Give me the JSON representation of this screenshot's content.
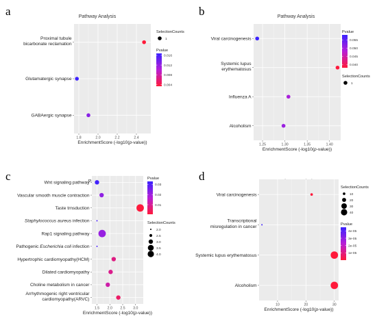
{
  "chart_data": [
    {
      "type": "scatter",
      "panel_label": "a",
      "title": "Pathway Analysis",
      "xlabel": "EnrichmentScore (-log10(",
      "xlabel_italic": "p",
      "xlabel_suffix": "-value))",
      "xlim": [
        1.75,
        2.55
      ],
      "xticks": [
        1.8,
        2.0,
        2.2,
        2.4
      ],
      "xtick_labels": [
        "1.8",
        "2.0",
        "2.2",
        "2.4"
      ],
      "categories": [
        {
          "parts": [
            {
              "t": "Proximal tubule",
              "i": false
            }
          ],
          "line2": [
            {
              "t": "bicarbonate reclamation",
              "i": false
            }
          ]
        },
        {
          "parts": [
            {
              "t": "Glutamatergic synapse",
              "i": false
            }
          ]
        },
        {
          "parts": [
            {
              "t": "GABAergic synapse",
              "i": false
            }
          ]
        }
      ],
      "points": [
        {
          "x": 2.48,
          "cat": 0,
          "pvalue": 0.0033,
          "count": 1
        },
        {
          "x": 1.78,
          "cat": 1,
          "pvalue": 0.0166,
          "count": 1
        },
        {
          "x": 1.9,
          "cat": 2,
          "pvalue": 0.0126,
          "count": 1
        }
      ],
      "size_legend": {
        "title": "SelectionCounts",
        "labels": [
          "1"
        ],
        "values": [
          1
        ]
      },
      "size_range": [
        1,
        1
      ],
      "color_legend": {
        "title": "Pvalue",
        "range": [
          0.0033,
          0.0168
        ],
        "ticks": [
          0.004,
          0.008,
          0.012,
          0.016
        ],
        "tick_labels": [
          "0.004",
          "0.008",
          "0.012",
          "0.016"
        ]
      },
      "legend_order": [
        "size",
        "color"
      ]
    },
    {
      "type": "scatter",
      "panel_label": "b",
      "title": "Pathway Analysis",
      "xlabel": "EnrichmentScore (-log10(",
      "xlabel_italic": "p",
      "xlabel_suffix": "-value))",
      "xlim": [
        1.23,
        1.425
      ],
      "xticks": [
        1.25,
        1.3,
        1.35,
        1.4
      ],
      "xtick_labels": [
        "1.25",
        "1.30",
        "1.35",
        "1.40"
      ],
      "categories": [
        {
          "parts": [
            {
              "t": "Viral carcinogenesis",
              "i": false
            }
          ]
        },
        {
          "parts": [
            {
              "t": "Systemic lupus",
              "i": false
            }
          ],
          "line2": [
            {
              "t": "erythematosus",
              "i": false
            }
          ]
        },
        {
          "parts": [
            {
              "t": "Influenza A",
              "i": false
            }
          ]
        },
        {
          "parts": [
            {
              "t": "Alcoholism",
              "i": false
            }
          ]
        }
      ],
      "points": [
        {
          "x": 1.238,
          "cat": 0,
          "pvalue": 0.0579,
          "count": 1
        },
        {
          "x": 1.418,
          "cat": 1,
          "pvalue": 0.0382,
          "count": 1
        },
        {
          "x": 1.308,
          "cat": 2,
          "pvalue": 0.0492,
          "count": 1
        },
        {
          "x": 1.297,
          "cat": 3,
          "pvalue": 0.0504,
          "count": 1
        }
      ],
      "size_legend": {
        "title": "SelectionCounts",
        "labels": [
          "1"
        ],
        "values": [
          1
        ]
      },
      "size_range": [
        1,
        1
      ],
      "color_legend": {
        "title": "Pvalue",
        "range": [
          0.038,
          0.058
        ],
        "ticks": [
          0.04,
          0.045,
          0.05,
          0.055
        ],
        "tick_labels": [
          "0.040",
          "0.045",
          "0.050",
          "0.055"
        ]
      },
      "legend_order": [
        "color",
        "size"
      ]
    },
    {
      "type": "scatter",
      "panel_label": "c",
      "title": "Pathway Analysis",
      "xlabel": "EnrichmentScore (-log10(",
      "xlabel_italic": "p",
      "xlabel_suffix": "-value))",
      "xlim": [
        1.3,
        3.3
      ],
      "xticks": [
        1.5,
        2.0,
        2.5,
        3.0
      ],
      "xtick_labels": [
        "1.5",
        "2.0",
        "2.5",
        "3.0"
      ],
      "categories": [
        {
          "parts": [
            {
              "t": "Wnt signaling pathway",
              "i": false
            }
          ]
        },
        {
          "parts": [
            {
              "t": "Vascular smooth muscle contraction",
              "i": false
            }
          ]
        },
        {
          "parts": [
            {
              "t": "Taste trnsduction",
              "i": false
            }
          ]
        },
        {
          "parts": [
            {
              "t": "Staphylococcus aureus",
              "i": true
            },
            {
              "t": " infection",
              "i": false
            }
          ]
        },
        {
          "parts": [
            {
              "t": "Rap1 signaling pathway",
              "i": false
            }
          ]
        },
        {
          "parts": [
            {
              "t": "Pathogenic ",
              "i": false
            },
            {
              "t": "Escherichia coli",
              "i": true
            },
            {
              "t": " infection",
              "i": false
            }
          ]
        },
        {
          "parts": [
            {
              "t": "Hypertrophic cardiomyopathy(HCM)",
              "i": false
            }
          ]
        },
        {
          "parts": [
            {
              "t": "Dilated cardiomyopathy",
              "i": false
            }
          ]
        },
        {
          "parts": [
            {
              "t": "Choline metabolism in cancer",
              "i": false
            }
          ]
        },
        {
          "parts": [
            {
              "t": "Arrhythmogenic right ventricular",
              "i": false
            }
          ],
          "line2": [
            {
              "t": "cardiomyopathy(ARVC)",
              "i": false
            }
          ]
        }
      ],
      "points": [
        {
          "x": 1.5,
          "cat": 0,
          "pvalue": 0.032,
          "count": 3
        },
        {
          "x": 1.68,
          "cat": 1,
          "pvalue": 0.022,
          "count": 3
        },
        {
          "x": 3.18,
          "cat": 2,
          "pvalue": 0.0007,
          "count": 4
        },
        {
          "x": 1.5,
          "cat": 3,
          "pvalue": 0.031,
          "count": 2
        },
        {
          "x": 1.7,
          "cat": 4,
          "pvalue": 0.021,
          "count": 4
        },
        {
          "x": 1.5,
          "cat": 5,
          "pvalue": 0.031,
          "count": 2
        },
        {
          "x": 2.15,
          "cat": 6,
          "pvalue": 0.008,
          "count": 3
        },
        {
          "x": 2.03,
          "cat": 7,
          "pvalue": 0.009,
          "count": 3
        },
        {
          "x": 1.92,
          "cat": 8,
          "pvalue": 0.012,
          "count": 3
        },
        {
          "x": 2.33,
          "cat": 9,
          "pvalue": 0.005,
          "count": 3
        }
      ],
      "size_legend": {
        "title": "SelectionCounts",
        "labels": [
          "2.0",
          "2.5",
          "3.0",
          "3.5",
          "4.0"
        ],
        "values": [
          2.0,
          2.5,
          3.0,
          3.5,
          4.0
        ]
      },
      "size_range": [
        2,
        4
      ],
      "color_legend": {
        "title": "Pvalue",
        "range": [
          0.0005,
          0.033
        ],
        "ticks": [
          0.01,
          0.02,
          0.03
        ],
        "tick_labels": [
          "0.01",
          "0.02",
          "0.03"
        ]
      },
      "legend_order": [
        "color",
        "size"
      ]
    },
    {
      "type": "scatter",
      "panel_label": "d",
      "title": "Pathway Analysis",
      "xlabel": "EnrichmentScore (-log10(",
      "xlabel_italic": "p",
      "xlabel_suffix": "-value))",
      "xlim": [
        3.5,
        31.5
      ],
      "xticks": [
        10,
        20,
        30
      ],
      "xtick_labels": [
        "10",
        "20",
        "30"
      ],
      "categories": [
        {
          "parts": [
            {
              "t": "Viral carcinogenesis",
              "i": false
            }
          ]
        },
        {
          "parts": [
            {
              "t": "Transcriptional",
              "i": false
            }
          ],
          "line2": [
            {
              "t": "misregulation in cancer",
              "i": false
            }
          ]
        },
        {
          "parts": [
            {
              "t": "Systemic lupus erythematosus",
              "i": false
            }
          ]
        },
        {
          "parts": [
            {
              "t": "Alcoholism",
              "i": false
            }
          ]
        }
      ],
      "points": [
        {
          "x": 22.0,
          "cat": 0,
          "pvalue": 3e-07,
          "count": 10
        },
        {
          "x": 4.5,
          "cat": 1,
          "pvalue": 4.4e-05,
          "count": 2
        },
        {
          "x": 30.0,
          "cat": 2,
          "pvalue": 1e-07,
          "count": 43
        },
        {
          "x": 30.0,
          "cat": 3,
          "pvalue": 1e-07,
          "count": 43
        }
      ],
      "size_legend": {
        "title": "SelectionCounts",
        "labels": [
          "10",
          "20",
          "30",
          "40"
        ],
        "values": [
          10,
          20,
          30,
          40
        ]
      },
      "size_range": [
        2,
        43
      ],
      "color_legend": {
        "title": "Pvalue",
        "range": [
          0,
          4.5e-05
        ],
        "ticks": [
          1e-05,
          2e-05,
          3e-05,
          4e-05
        ],
        "tick_labels": [
          "1e-05",
          "2e-05",
          "3e-05",
          "4e-05"
        ]
      },
      "legend_order": [
        "size",
        "color"
      ]
    }
  ]
}
